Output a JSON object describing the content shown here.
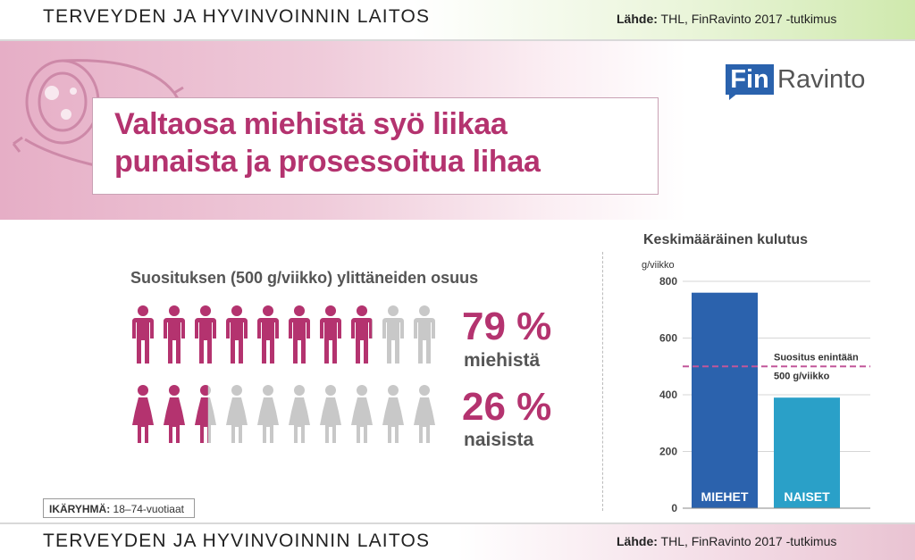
{
  "header": {
    "org": "TERVEYDEN JA HYVINVOINNIN LAITOS",
    "source_label": "Lähde:",
    "source_text": " THL, FinRavinto 2017 -tutkimus"
  },
  "footer": {
    "org": "TERVEYDEN JA HYVINVOINNIN LAITOS",
    "source_label": "Lähde:",
    "source_text": " THL, FinRavinto 2017 -tutkimus"
  },
  "logo": {
    "fin": "Fin",
    "ravinto": "Ravinto"
  },
  "title": {
    "line1": "Valtaosa miehistä syö liikaa",
    "line2": "punaista ja prosessoitua lihaa"
  },
  "share": {
    "heading": "Suosituksen (500 g/viikko) ylittäneiden osuus",
    "men": {
      "pct": "79 %",
      "label": "miehistä",
      "value": 79
    },
    "women": {
      "pct": "26 %",
      "label": "naisista",
      "value": 26
    }
  },
  "age_group": {
    "label": "IKÄRYHMÄ:",
    "value": " 18–74-vuotiaat"
  },
  "colors": {
    "accent": "#b4336f",
    "grey": "#c8c8c8",
    "men_bar": "#2b62ad",
    "women_bar": "#2aa0c8"
  },
  "chart_data": {
    "type": "bar",
    "title": "Keskimääräinen kulutus",
    "ylabel": "g/viikko",
    "categories": [
      "MIEHET",
      "NAISET"
    ],
    "values": [
      760,
      390
    ],
    "ylim": [
      0,
      800
    ],
    "yticks": [
      "0",
      "200",
      "400",
      "600",
      "800"
    ],
    "ytick_values": [
      0,
      200,
      400,
      600,
      800
    ],
    "reference_line": {
      "value": 500,
      "label1": "Suositus enintään",
      "label2": "500 g/viikko"
    }
  }
}
